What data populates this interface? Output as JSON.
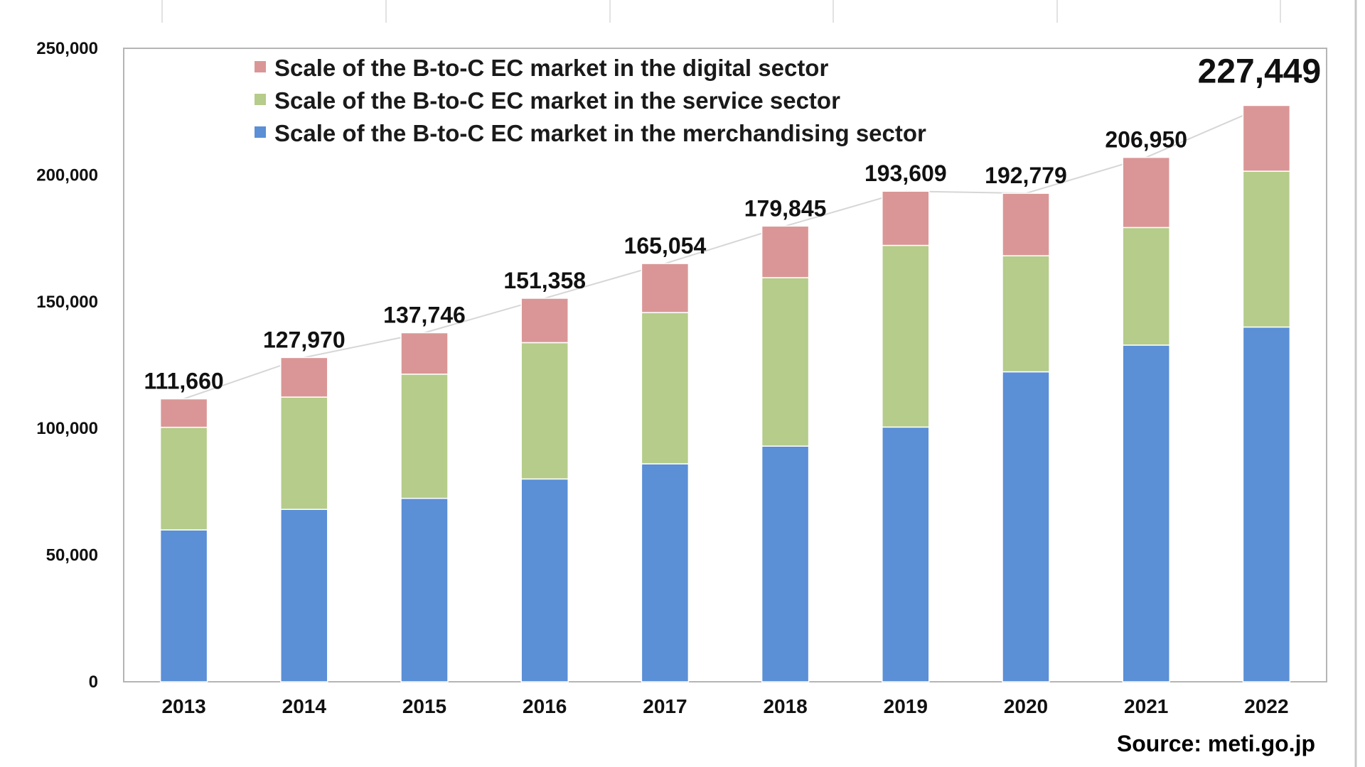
{
  "colors": {
    "merchandising": "#5b8fd6",
    "service": "#b5cc8a",
    "digital": "#da9696",
    "trend_line": "#d6d6d6",
    "frame": "#b5b5b5",
    "right_edge": "#c8c8c8"
  },
  "source": "Source: meti.go.jp",
  "chart_data": {
    "type": "bar",
    "stacked": true,
    "categories": [
      "2013",
      "2014",
      "2015",
      "2016",
      "2017",
      "2018",
      "2019",
      "2020",
      "2021",
      "2022"
    ],
    "series": [
      {
        "name": "Scale of the B-to-C EC market in the merchandising sector",
        "color_key": "merchandising",
        "values": [
          59931,
          68043,
          72398,
          80043,
          86008,
          92992,
          100515,
          122333,
          132865,
          139997
        ]
      },
      {
        "name": "Scale of the B-to-C EC market in the service sector",
        "color_key": "service",
        "values": [
          40500,
          44300,
          49000,
          53800,
          59700,
          66500,
          71700,
          45800,
          46400,
          61500
        ]
      },
      {
        "name": "Scale of the B-to-C EC market in the digital sector",
        "color_key": "digital",
        "values": [
          11229,
          15627,
          16348,
          17515,
          19346,
          20353,
          21394,
          24646,
          27685,
          25952
        ]
      }
    ],
    "legend_order": [
      2,
      1,
      0
    ],
    "totals": [
      111660,
      127970,
      137746,
      151358,
      165054,
      179845,
      193609,
      192779,
      206950,
      227449
    ],
    "total_labels": [
      "111,660",
      "127,970",
      "137,746",
      "151,358",
      "165,054",
      "179,845",
      "193,609",
      "192,779",
      "206,950",
      "227,449"
    ],
    "y_ticks": [
      0,
      50000,
      100000,
      150000,
      200000,
      250000
    ],
    "y_tick_labels": [
      "0",
      "50,000",
      "100,000",
      "150,000",
      "200,000",
      "250,000"
    ],
    "ylim": [
      0,
      250000
    ],
    "title": "",
    "xlabel": "",
    "ylabel": "",
    "grid": false,
    "legend_position": "top-left"
  }
}
